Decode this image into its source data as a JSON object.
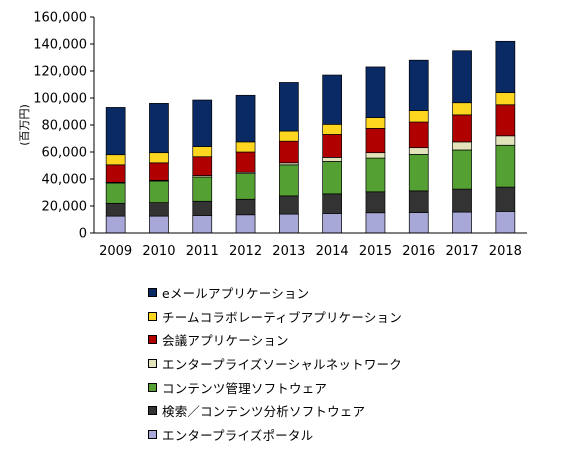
{
  "chart_data": {
    "type": "bar",
    "stacked": true,
    "title": "",
    "xlabel": "",
    "ylabel": "(百万円)",
    "ylim": [
      0,
      160000
    ],
    "yticks": [
      "0",
      "20,000",
      "40,000",
      "60,000",
      "80,000",
      "100,000",
      "120,000",
      "140,000",
      "160,000"
    ],
    "grid": false,
    "legend_position": "bottom",
    "categories": [
      "2009",
      "2010",
      "2011",
      "2012",
      "2013",
      "2014",
      "2015",
      "2016",
      "2017",
      "2018"
    ],
    "series": [
      {
        "name": "エンタープライズポータル",
        "color": "#a8a8d8",
        "values": [
          12500,
          12500,
          13000,
          13500,
          14000,
          14500,
          15000,
          15200,
          15500,
          16000
        ]
      },
      {
        "name": "検索／コンテンツ分析ソフトウェア",
        "color": "#333333",
        "values": [
          9500,
          10000,
          10500,
          11500,
          13500,
          14500,
          15500,
          16000,
          17000,
          18000
        ]
      },
      {
        "name": "コンテンツ管理ソフトウェア",
        "color": "#55a033",
        "values": [
          15000,
          16000,
          18000,
          19000,
          23000,
          24000,
          25000,
          27000,
          29000,
          31000
        ]
      },
      {
        "name": "エンタープライズソーシャルネットワーク",
        "color": "#e2e2bb",
        "values": [
          500,
          500,
          1000,
          1000,
          1500,
          3000,
          4000,
          5000,
          6000,
          7000
        ]
      },
      {
        "name": "会議アプリケーション",
        "color": "#b00000",
        "values": [
          13000,
          13000,
          14000,
          15000,
          16000,
          17000,
          18000,
          19000,
          20000,
          23000
        ]
      },
      {
        "name": "チームコラボレーティブアプリケーション",
        "color": "#ffd61f",
        "values": [
          7500,
          7500,
          7500,
          7500,
          7500,
          7500,
          8000,
          8500,
          9000,
          9000
        ]
      },
      {
        "name": "eメールアプリケーション",
        "color": "#0a2a66",
        "values": [
          35000,
          36500,
          34500,
          34500,
          36000,
          36500,
          37500,
          37300,
          38500,
          38000
        ]
      }
    ]
  },
  "legend": {
    "items": [
      {
        "label": "eメールアプリケーション",
        "color": "#0a2a66"
      },
      {
        "label": "チームコラボレーティブアプリケーション",
        "color": "#ffd61f"
      },
      {
        "label": "会議アプリケーション",
        "color": "#b00000"
      },
      {
        "label": "エンタープライズソーシャルネットワーク",
        "color": "#e2e2bb"
      },
      {
        "label": "コンテンツ管理ソフトウェア",
        "color": "#55a033"
      },
      {
        "label": "検索／コンテンツ分析ソフトウェア",
        "color": "#333333"
      },
      {
        "label": "エンタープライズポータル",
        "color": "#a8a8d8"
      }
    ]
  }
}
